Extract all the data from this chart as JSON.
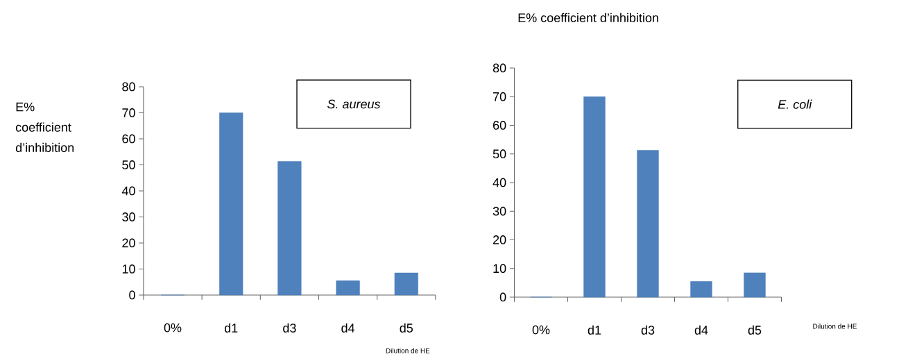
{
  "chart_data": [
    {
      "type": "bar",
      "ylabel": "E% coefficient d’inhibition",
      "xlabel": "Dilution de HE",
      "annotations": [
        "S. aureus"
      ],
      "categories": [
        "0%",
        "d1",
        "d3",
        "d4",
        "d5"
      ],
      "values": [
        0,
        70,
        51.3,
        5.5,
        8.5
      ],
      "color": "#4f81bd",
      "ylim": [
        0,
        80
      ],
      "yticks": [
        0,
        10,
        20,
        30,
        40,
        50,
        60,
        70,
        80
      ]
    },
    {
      "type": "bar",
      "ylabel": "E%  coefficient d’inhibition",
      "xlabel": "Dilution de HE",
      "annotations": [
        "E. coli"
      ],
      "categories": [
        "0%",
        "d1",
        "d3",
        "d4",
        "d5"
      ],
      "values": [
        0,
        70,
        51.3,
        5.5,
        8.5
      ],
      "color": "#4f81bd",
      "ylim": [
        0,
        80
      ],
      "yticks": [
        0,
        10,
        20,
        30,
        40,
        50,
        60,
        70,
        80
      ]
    }
  ]
}
